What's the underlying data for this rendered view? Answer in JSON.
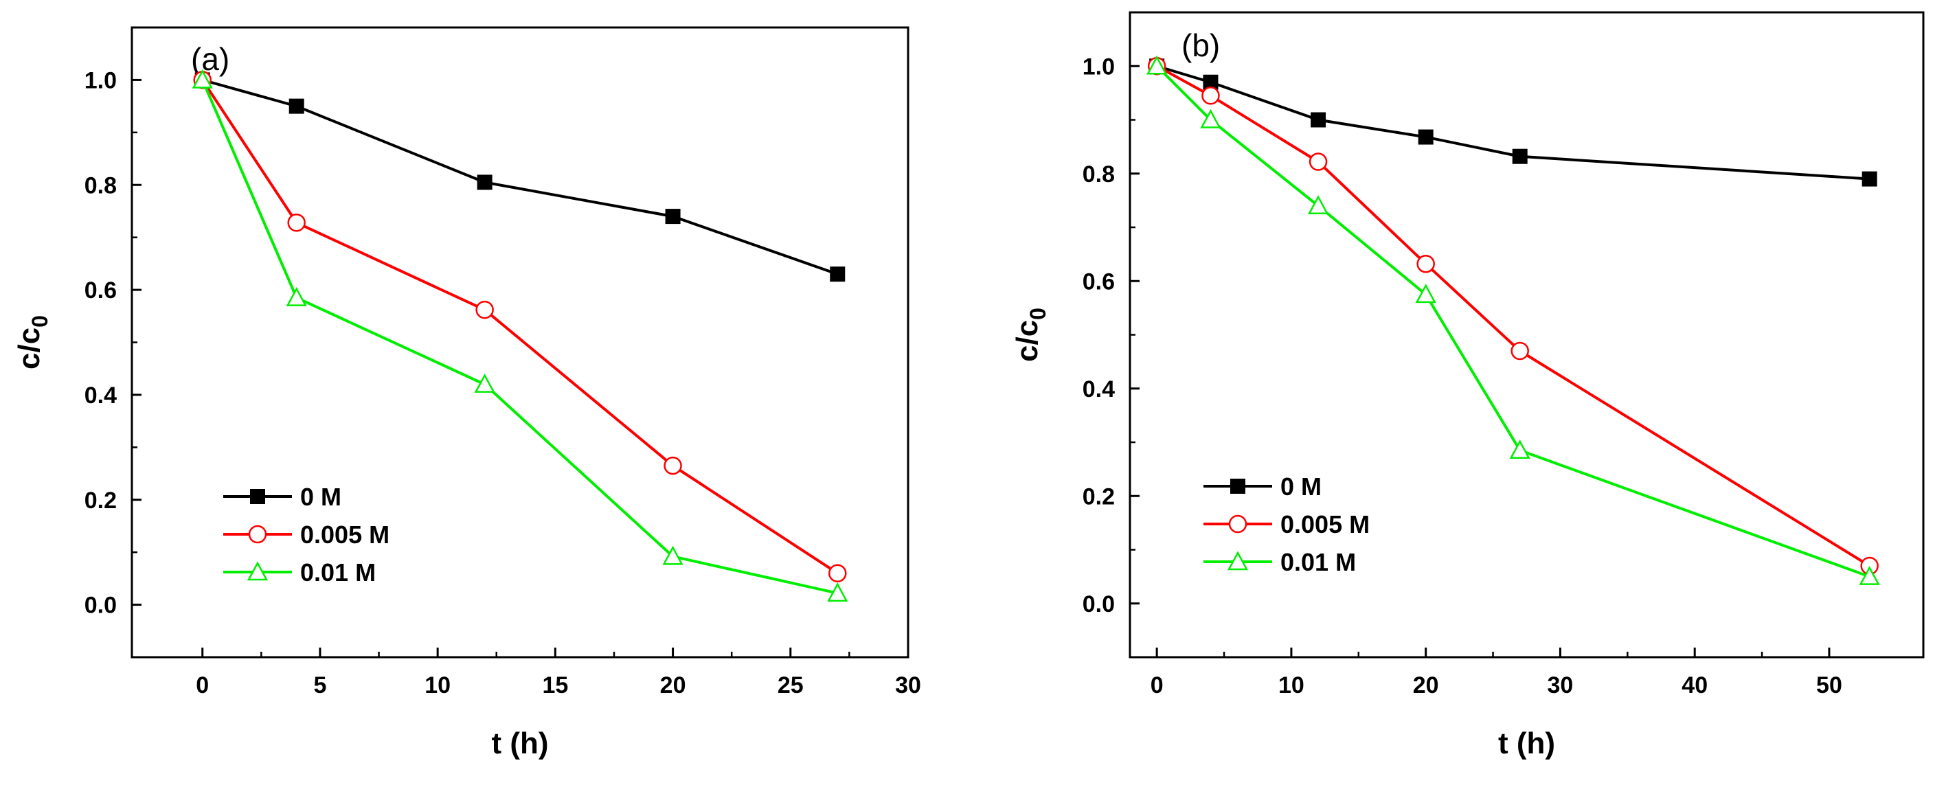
{
  "chart_data": [
    {
      "type": "line",
      "panel_label": "(a)",
      "xlabel": "t (h)",
      "ylabel": {
        "base": "c/c",
        "sub": "0"
      },
      "xlim": [
        -3,
        30
      ],
      "ylim": [
        -0.1,
        1.1
      ],
      "xticks": [
        0,
        5,
        10,
        15,
        20,
        25,
        30
      ],
      "yticks": [
        0.0,
        0.2,
        0.4,
        0.6,
        0.8,
        1.0
      ],
      "x_tick_labels": [
        "0",
        "5",
        "10",
        "15",
        "20",
        "25",
        "30"
      ],
      "y_tick_labels": [
        "0.0",
        "0.2",
        "0.4",
        "0.6",
        "0.8",
        "1.0"
      ],
      "legend_position": "bottom-left",
      "series": [
        {
          "name": "0 M",
          "color": "#000000",
          "marker": "filled-square",
          "x": [
            0,
            4,
            12,
            20,
            27
          ],
          "y": [
            1.0,
            0.95,
            0.805,
            0.74,
            0.63
          ]
        },
        {
          "name": "0.005 M",
          "color": "#ff0000",
          "marker": "open-circle",
          "x": [
            0,
            4,
            12,
            20,
            27
          ],
          "y": [
            1.0,
            0.728,
            0.562,
            0.265,
            0.06
          ]
        },
        {
          "name": "0.01 M",
          "color": "#00ee00",
          "marker": "open-triangle",
          "x": [
            0,
            4,
            12,
            20,
            27
          ],
          "y": [
            1.0,
            0.585,
            0.42,
            0.092,
            0.022
          ]
        }
      ]
    },
    {
      "type": "line",
      "panel_label": "(b)",
      "xlabel": "t (h)",
      "ylabel": {
        "base": "c/c",
        "sub": "0"
      },
      "xlim": [
        -2,
        57
      ],
      "ylim": [
        -0.1,
        1.1
      ],
      "xticks": [
        0,
        10,
        20,
        30,
        40,
        50
      ],
      "yticks": [
        0.0,
        0.2,
        0.4,
        0.6,
        0.8,
        1.0
      ],
      "x_tick_labels": [
        "0",
        "10",
        "20",
        "30",
        "40",
        "50"
      ],
      "y_tick_labels": [
        "0.0",
        "0.2",
        "0.4",
        "0.6",
        "0.8",
        "1.0"
      ],
      "legend_position": "bottom-left",
      "series": [
        {
          "name": "0 M",
          "color": "#000000",
          "marker": "filled-square",
          "x": [
            0,
            4,
            12,
            20,
            27,
            53
          ],
          "y": [
            1.0,
            0.97,
            0.9,
            0.868,
            0.832,
            0.79
          ]
        },
        {
          "name": "0.005 M",
          "color": "#ff0000",
          "marker": "open-circle",
          "x": [
            0,
            4,
            12,
            20,
            27,
            53
          ],
          "y": [
            1.0,
            0.945,
            0.822,
            0.632,
            0.47,
            0.07
          ]
        },
        {
          "name": "0.01 M",
          "color": "#00ee00",
          "marker": "open-triangle",
          "x": [
            0,
            4,
            12,
            20,
            27,
            53
          ],
          "y": [
            1.0,
            0.9,
            0.74,
            0.575,
            0.285,
            0.05
          ]
        }
      ]
    }
  ]
}
